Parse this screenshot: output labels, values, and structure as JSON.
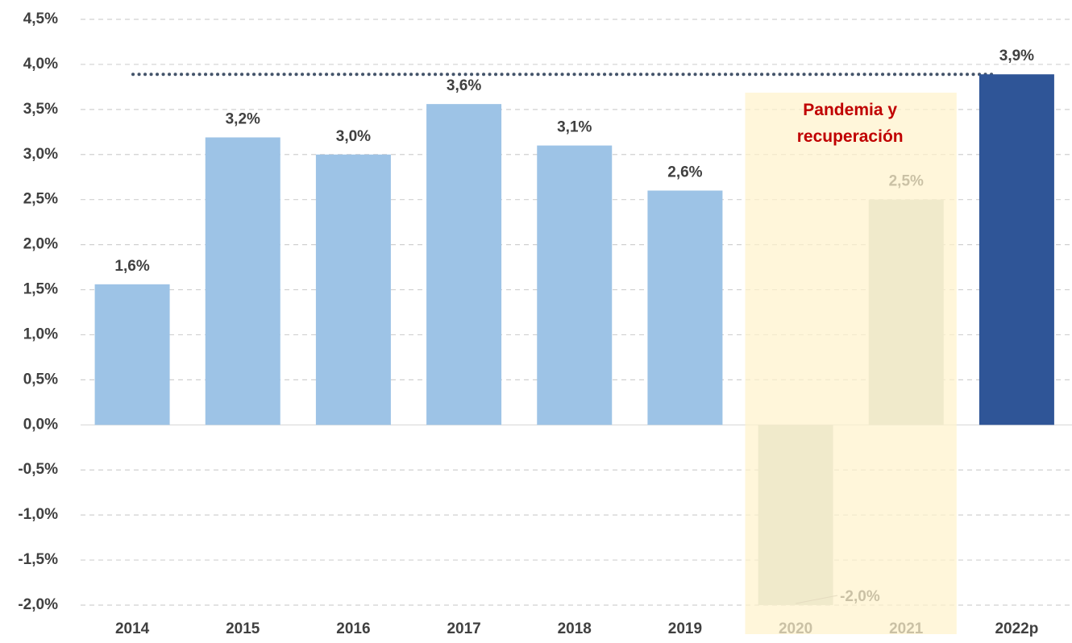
{
  "chart_data": {
    "type": "bar",
    "categories": [
      "2014",
      "2015",
      "2016",
      "2017",
      "2018",
      "2019",
      "2020",
      "2021",
      "2022p"
    ],
    "values": [
      1.56,
      3.19,
      3.0,
      3.56,
      3.1,
      2.6,
      -2.0,
      2.5,
      3.89
    ],
    "value_labels": [
      "1,6%",
      "3,2%",
      "3,0%",
      "3,6%",
      "3,1%",
      "2,6%",
      "-2,0%",
      "2,5%",
      "3,9%"
    ],
    "colors": [
      "#9dc3e6",
      "#9dc3e6",
      "#9dc3e6",
      "#9dc3e6",
      "#9dc3e6",
      "#9dc3e6",
      "#c9d3c9",
      "#c9d3c9",
      "#2f5597"
    ],
    "ylim": [
      -2.0,
      4.5
    ],
    "yticks": [
      {
        "value": -2.0,
        "label": "-2,0%"
      },
      {
        "value": -1.5,
        "label": "-1,5%"
      },
      {
        "value": -1.0,
        "label": "-1,0%"
      },
      {
        "value": -0.5,
        "label": "-0,5%"
      },
      {
        "value": 0.0,
        "label": "0,0%"
      },
      {
        "value": 0.5,
        "label": "0,5%"
      },
      {
        "value": 1.0,
        "label": "1,0%"
      },
      {
        "value": 1.5,
        "label": "1,5%"
      },
      {
        "value": 2.0,
        "label": "2,0%"
      },
      {
        "value": 2.5,
        "label": "2,5%"
      },
      {
        "value": 3.0,
        "label": "3,0%"
      },
      {
        "value": 3.5,
        "label": "3,5%"
      },
      {
        "value": 4.0,
        "label": "4,0%"
      },
      {
        "value": 4.5,
        "label": "4,5%"
      }
    ],
    "grid": true,
    "annotation": "Pandemia y recuperación",
    "highlight_color": "#fff2cc",
    "annotation_color": "#c00000"
  }
}
